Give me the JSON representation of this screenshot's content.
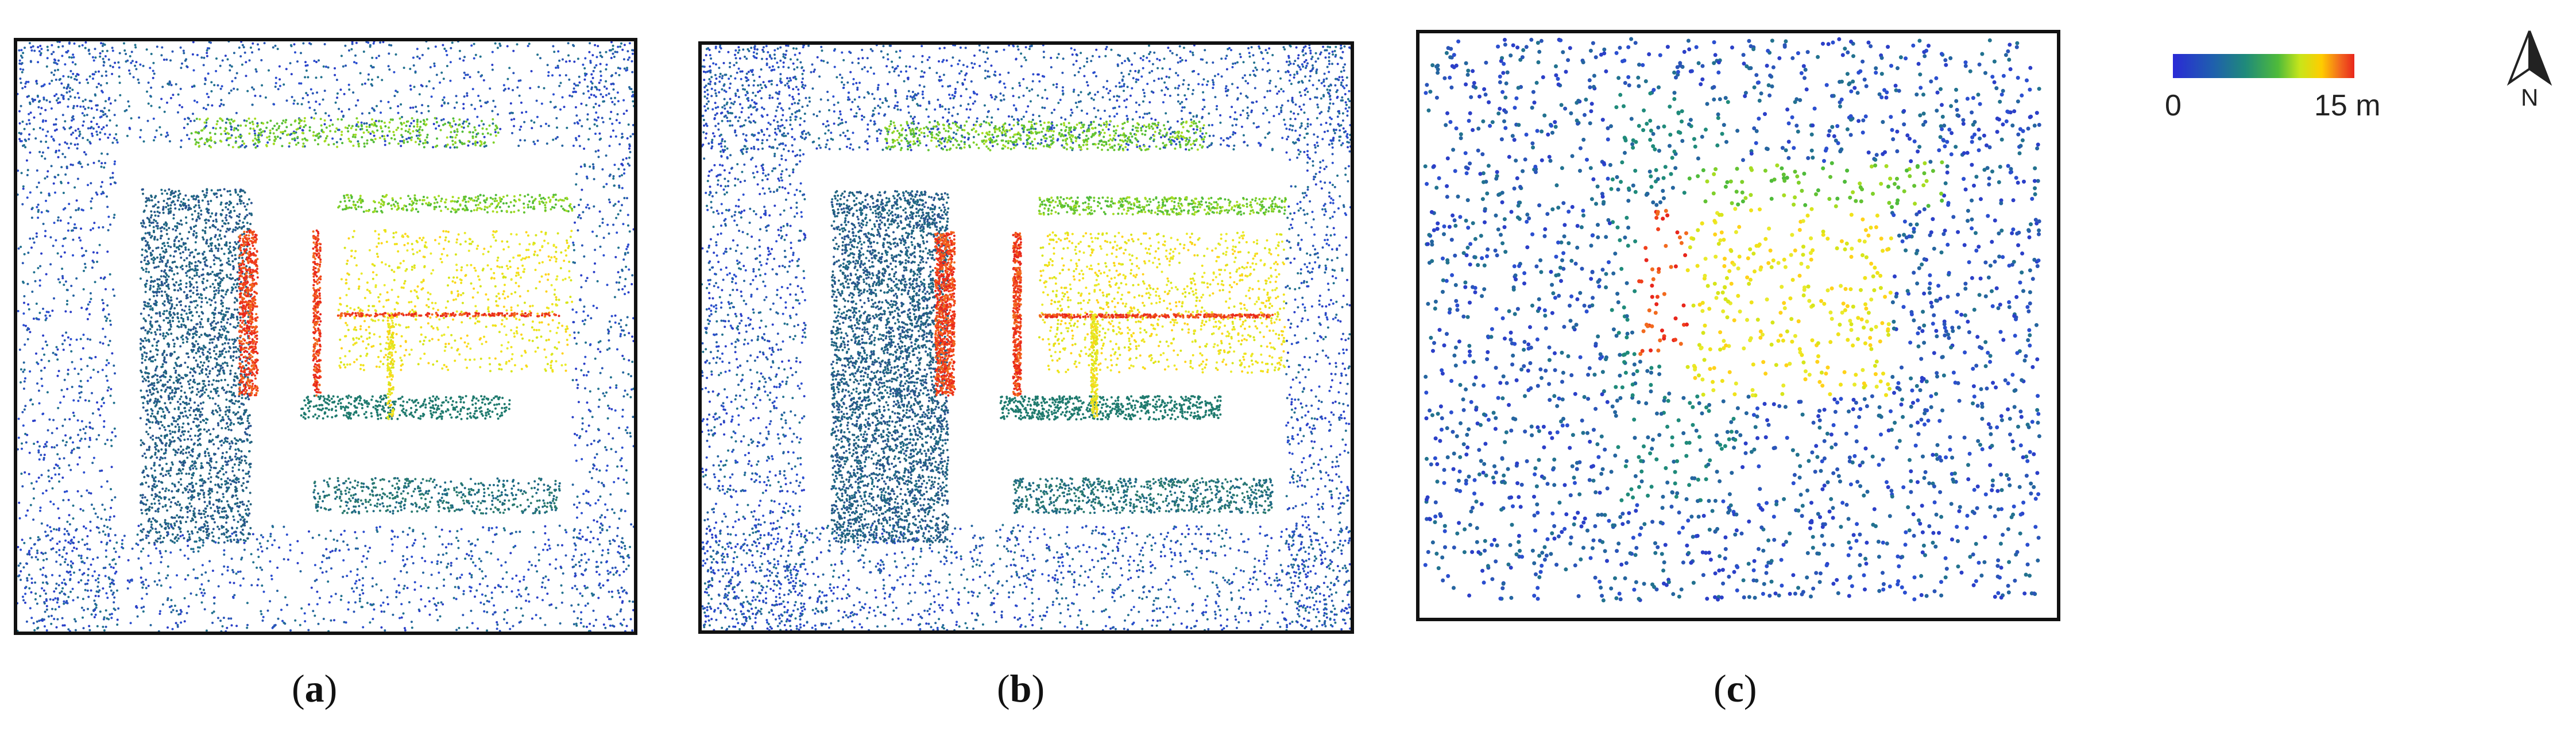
{
  "panels": [
    {
      "id": "a",
      "caption_label": "a"
    },
    {
      "id": "b",
      "caption_label": "b"
    },
    {
      "id": "c",
      "caption_label": "c"
    }
  ],
  "colorbar": {
    "min_label": "0",
    "max_label": "15 m",
    "colors": [
      "#2a2ad6",
      "#1f5fae",
      "#1f8a7a",
      "#4fbb3a",
      "#c8e51a",
      "#ffcc00",
      "#f26a1e",
      "#e8261c"
    ]
  },
  "north_arrow": {
    "label": "N"
  }
}
